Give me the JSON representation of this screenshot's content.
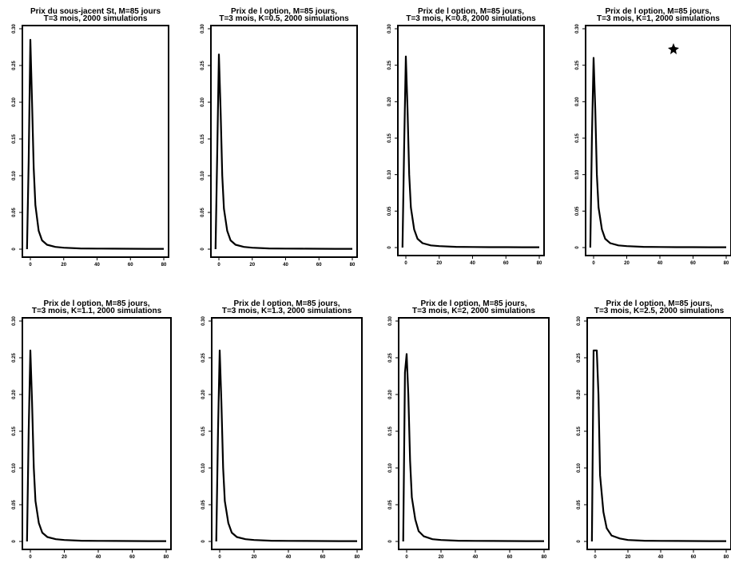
{
  "chart_data": [
    {
      "type": "line",
      "title": [
        "Prix du sous-jacent St, M=85 jours",
        "T=3 mois, 2000 simulations"
      ],
      "xlim": [
        -5,
        80
      ],
      "ylim": [
        0,
        0.3
      ],
      "xticks": [
        0,
        20,
        40,
        60,
        80
      ],
      "yticks": [
        0,
        0.05,
        0.1,
        0.15,
        0.2,
        0.25,
        0.3
      ],
      "xtick_labels": [
        "0",
        "20",
        "40",
        "60",
        "80"
      ],
      "ytick_labels": [
        "0",
        "0.05",
        "0.10",
        "0.15",
        "0.20",
        "0.25",
        "0.30"
      ],
      "x": [
        -2,
        -1,
        0,
        1,
        2,
        3,
        5,
        7,
        10,
        15,
        20,
        30,
        40,
        50,
        60,
        70,
        80
      ],
      "y": [
        0.0,
        0.12,
        0.285,
        0.2,
        0.11,
        0.06,
        0.025,
        0.012,
        0.006,
        0.003,
        0.002,
        0.001,
        0.0008,
        0.0006,
        0.0005,
        0.0004,
        0.0004
      ]
    },
    {
      "type": "line",
      "title": [
        "Prix de l option, M=85 jours,",
        "T=3 mois, K=0.5, 2000 simulations"
      ],
      "xlim": [
        -5,
        80
      ],
      "ylim": [
        0,
        0.3
      ],
      "xticks": [
        0,
        20,
        40,
        60,
        80
      ],
      "yticks": [
        0,
        0.05,
        0.1,
        0.15,
        0.2,
        0.25,
        0.3
      ],
      "xtick_labels": [
        "0",
        "20",
        "40",
        "60",
        "80"
      ],
      "ytick_labels": [
        "0",
        "0.05",
        "0.10",
        "0.15",
        "0.20",
        "0.25",
        "0.30"
      ],
      "x": [
        -2,
        -1,
        0,
        1,
        2,
        3,
        5,
        7,
        10,
        15,
        20,
        30,
        40,
        50,
        60,
        70,
        80
      ],
      "y": [
        0.0,
        0.13,
        0.265,
        0.19,
        0.1,
        0.055,
        0.025,
        0.012,
        0.006,
        0.003,
        0.002,
        0.001,
        0.0008,
        0.0006,
        0.0005,
        0.0004,
        0.0004
      ]
    },
    {
      "type": "line",
      "title": [
        "Prix de l option, M=85 jours,",
        "T=3 mois, K=0.8, 2000 simulations"
      ],
      "xlim": [
        -5,
        80
      ],
      "ylim": [
        0,
        0.3
      ],
      "xticks": [
        0,
        20,
        40,
        60,
        80
      ],
      "yticks": [
        0,
        0.05,
        0.1,
        0.15,
        0.2,
        0.25,
        0.3
      ],
      "xtick_labels": [
        "0",
        "20",
        "40",
        "60",
        "80"
      ],
      "ytick_labels": [
        "0",
        "0.05",
        "0.10",
        "0.15",
        "0.20",
        "0.25",
        "0.30"
      ],
      "x": [
        -2,
        -1,
        0,
        1,
        2,
        3,
        5,
        7,
        10,
        15,
        20,
        30,
        40,
        50,
        60,
        70,
        80
      ],
      "y": [
        0.0,
        0.14,
        0.262,
        0.19,
        0.1,
        0.055,
        0.025,
        0.012,
        0.006,
        0.003,
        0.002,
        0.001,
        0.0008,
        0.0006,
        0.0005,
        0.0004,
        0.0004
      ]
    },
    {
      "type": "line",
      "title": [
        "Prix de l option, M=85 jours,",
        "T=3 mois, K=1, 2000 simulations"
      ],
      "xlim": [
        -5,
        80
      ],
      "ylim": [
        0,
        0.3
      ],
      "xticks": [
        0,
        20,
        40,
        60,
        80
      ],
      "yticks": [
        0,
        0.05,
        0.1,
        0.15,
        0.2,
        0.25,
        0.3
      ],
      "xtick_labels": [
        "0",
        "20",
        "40",
        "60",
        "80"
      ],
      "ytick_labels": [
        "0",
        "0.05",
        "0.10",
        "0.15",
        "0.20",
        "0.25",
        "0.30"
      ],
      "x": [
        -2,
        -1,
        0,
        1,
        2,
        3,
        5,
        7,
        10,
        15,
        20,
        30,
        40,
        50,
        60,
        70,
        80
      ],
      "y": [
        0.0,
        0.15,
        0.26,
        0.19,
        0.1,
        0.055,
        0.025,
        0.012,
        0.006,
        0.003,
        0.002,
        0.001,
        0.0008,
        0.0006,
        0.0005,
        0.0004,
        0.0004
      ]
    },
    {
      "type": "line",
      "title": [
        "Prix de l option, M=85 jours,",
        "T=3 mois, K=1.1, 2000 simulations"
      ],
      "xlim": [
        -5,
        80
      ],
      "ylim": [
        0,
        0.3
      ],
      "xticks": [
        0,
        20,
        40,
        60,
        80
      ],
      "yticks": [
        0,
        0.05,
        0.1,
        0.15,
        0.2,
        0.25,
        0.3
      ],
      "xtick_labels": [
        "0",
        "20",
        "40",
        "60",
        "80"
      ],
      "ytick_labels": [
        "0",
        "0.05",
        "0.10",
        "0.15",
        "0.20",
        "0.25",
        "0.30"
      ],
      "x": [
        -2,
        -1,
        0,
        1,
        2,
        3,
        5,
        7,
        10,
        15,
        20,
        30,
        40,
        50,
        60,
        70,
        80
      ],
      "y": [
        0.0,
        0.15,
        0.26,
        0.19,
        0.1,
        0.055,
        0.025,
        0.012,
        0.006,
        0.003,
        0.002,
        0.001,
        0.0008,
        0.0006,
        0.0005,
        0.0004,
        0.0004
      ]
    },
    {
      "type": "line",
      "title": [
        "Prix de l option, M=85 jours,",
        "T=3 mois, K=1.3, 2000 simulations"
      ],
      "xlim": [
        -5,
        80
      ],
      "ylim": [
        0,
        0.3
      ],
      "xticks": [
        0,
        20,
        40,
        60,
        80
      ],
      "yticks": [
        0,
        0.05,
        0.1,
        0.15,
        0.2,
        0.25,
        0.3
      ],
      "xtick_labels": [
        "0",
        "20",
        "40",
        "60",
        "80"
      ],
      "ytick_labels": [
        "0",
        "0.05",
        "0.10",
        "0.15",
        "0.20",
        "0.25",
        "0.30"
      ],
      "x": [
        -2,
        -1,
        0,
        1,
        2,
        3,
        5,
        7,
        10,
        15,
        20,
        30,
        40,
        50,
        60,
        70,
        80
      ],
      "y": [
        0.0,
        0.15,
        0.26,
        0.19,
        0.1,
        0.055,
        0.025,
        0.012,
        0.006,
        0.003,
        0.002,
        0.001,
        0.0008,
        0.0006,
        0.0005,
        0.0004,
        0.0004
      ]
    },
    {
      "type": "line",
      "title": [
        "Prix de l option, M=85 jours,",
        "T=3 mois, K=2, 2000 simulations"
      ],
      "xlim": [
        -5,
        80
      ],
      "ylim": [
        0,
        0.3
      ],
      "xticks": [
        0,
        20,
        40,
        60,
        80
      ],
      "yticks": [
        0,
        0.05,
        0.1,
        0.15,
        0.2,
        0.25,
        0.3
      ],
      "xtick_labels": [
        "0",
        "20",
        "40",
        "60",
        "80"
      ],
      "ytick_labels": [
        "0",
        "0.05",
        "0.10",
        "0.15",
        "0.20",
        "0.25",
        "0.30"
      ],
      "x": [
        -2,
        -1,
        0,
        1,
        2,
        3,
        5,
        7,
        10,
        15,
        20,
        30,
        40,
        50,
        60,
        70,
        80
      ],
      "y": [
        0.0,
        0.23,
        0.255,
        0.2,
        0.11,
        0.06,
        0.03,
        0.014,
        0.007,
        0.003,
        0.002,
        0.001,
        0.0008,
        0.0006,
        0.0005,
        0.0004,
        0.0004
      ]
    },
    {
      "type": "line",
      "title": [
        "Prix de l option, M=85 jours,",
        "T=3 mois, K=2.5, 2000 simulations"
      ],
      "xlim": [
        -5,
        80
      ],
      "ylim": [
        0,
        0.3
      ],
      "xticks": [
        0,
        20,
        40,
        60,
        80
      ],
      "yticks": [
        0,
        0.05,
        0.1,
        0.15,
        0.2,
        0.25,
        0.3
      ],
      "xtick_labels": [
        "0",
        "20",
        "40",
        "60",
        "80"
      ],
      "ytick_labels": [
        "0",
        "0.05",
        "0.10",
        "0.15",
        "0.20",
        "0.25",
        "0.30"
      ],
      "x": [
        -2,
        -1,
        0,
        1,
        2,
        3,
        5,
        7,
        10,
        15,
        20,
        30,
        40,
        50,
        60,
        70,
        80
      ],
      "y": [
        0.0,
        0.26,
        0.26,
        0.26,
        0.2,
        0.09,
        0.04,
        0.018,
        0.008,
        0.004,
        0.002,
        0.001,
        0.0008,
        0.0006,
        0.0005,
        0.0004,
        0.0004
      ]
    }
  ]
}
